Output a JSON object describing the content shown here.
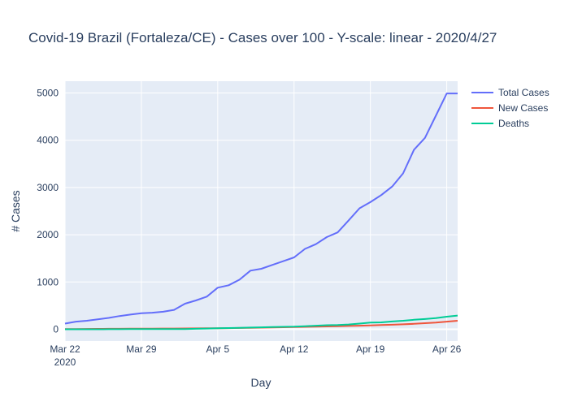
{
  "chart_data": {
    "type": "line",
    "title": "Covid-19 Brazil (Fortaleza/CE) - Cases over 100 - Y-scale: linear - 2020/4/27",
    "xlabel": "Day",
    "ylabel": "# Cases",
    "x": [
      "2020-03-22",
      "2020-03-23",
      "2020-03-24",
      "2020-03-25",
      "2020-03-26",
      "2020-03-27",
      "2020-03-28",
      "2020-03-29",
      "2020-03-30",
      "2020-03-31",
      "2020-04-01",
      "2020-04-02",
      "2020-04-03",
      "2020-04-04",
      "2020-04-05",
      "2020-04-06",
      "2020-04-07",
      "2020-04-08",
      "2020-04-09",
      "2020-04-10",
      "2020-04-11",
      "2020-04-12",
      "2020-04-13",
      "2020-04-14",
      "2020-04-15",
      "2020-04-16",
      "2020-04-17",
      "2020-04-18",
      "2020-04-19",
      "2020-04-20",
      "2020-04-21",
      "2020-04-22",
      "2020-04-23",
      "2020-04-24",
      "2020-04-25",
      "2020-04-26",
      "2020-04-27"
    ],
    "xlim": [
      "2020-03-22",
      "2020-04-27"
    ],
    "ylim": [
      -250,
      5250
    ],
    "x_ticks": [
      {
        "date": "2020-03-22",
        "label": "Mar 22",
        "sublabel": "2020"
      },
      {
        "date": "2020-03-29",
        "label": "Mar 29"
      },
      {
        "date": "2020-04-05",
        "label": "Apr 5"
      },
      {
        "date": "2020-04-12",
        "label": "Apr 12"
      },
      {
        "date": "2020-04-19",
        "label": "Apr 19"
      },
      {
        "date": "2020-04-26",
        "label": "Apr 26"
      }
    ],
    "y_ticks": [
      0,
      1000,
      2000,
      3000,
      4000,
      5000
    ],
    "grid": true,
    "legend_position": "top-right",
    "series": [
      {
        "name": "Total Cases",
        "color": "#636efa",
        "values": [
          120,
          160,
          180,
          210,
          240,
          280,
          310,
          340,
          350,
          370,
          410,
          540,
          610,
          690,
          880,
          930,
          1050,
          1240,
          1280,
          1360,
          1440,
          1520,
          1700,
          1800,
          1950,
          2050,
          2300,
          2560,
          2690,
          2840,
          3020,
          3300,
          3800,
          4050,
          4520,
          4990,
          4990
        ]
      },
      {
        "name": "New Cases",
        "color": "#ef553b",
        "values": [
          2,
          4,
          6,
          7,
          9,
          10,
          11,
          12,
          13,
          14,
          15,
          17,
          18,
          20,
          22,
          24,
          26,
          30,
          34,
          38,
          42,
          46,
          50,
          55,
          60,
          65,
          70,
          75,
          80,
          88,
          96,
          104,
          114,
          128,
          142,
          160,
          180
        ]
      },
      {
        "name": "Deaths",
        "color": "#00cc96",
        "values": [
          0,
          0,
          0,
          0,
          1,
          1,
          2,
          2,
          3,
          3,
          4,
          4,
          10,
          15,
          20,
          25,
          30,
          35,
          40,
          45,
          50,
          55,
          65,
          75,
          85,
          90,
          100,
          120,
          140,
          145,
          165,
          180,
          200,
          215,
          235,
          265,
          290
        ]
      }
    ]
  }
}
